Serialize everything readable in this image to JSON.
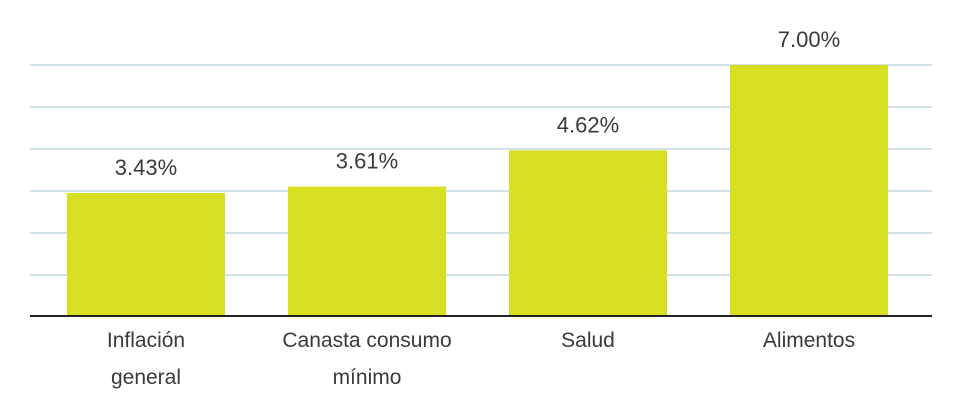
{
  "chart_data": {
    "type": "bar",
    "categories": [
      [
        "Inflación",
        "general"
      ],
      [
        "Canasta consumo",
        "mínimo"
      ],
      [
        "Salud"
      ],
      [
        "Alimentos"
      ]
    ],
    "values": [
      3.43,
      3.61,
      4.62,
      7.0
    ],
    "value_labels": [
      "3.43%",
      "3.61%",
      "4.62%",
      "7.00%"
    ],
    "title": "",
    "xlabel": "",
    "ylabel": "",
    "ylim": [
      0,
      7.0
    ],
    "grid": true,
    "legend": "none",
    "colors": {
      "bar": "#d7df23",
      "grid": "#b8cede",
      "axis": "#222222",
      "text": "#3a3a3a"
    }
  }
}
